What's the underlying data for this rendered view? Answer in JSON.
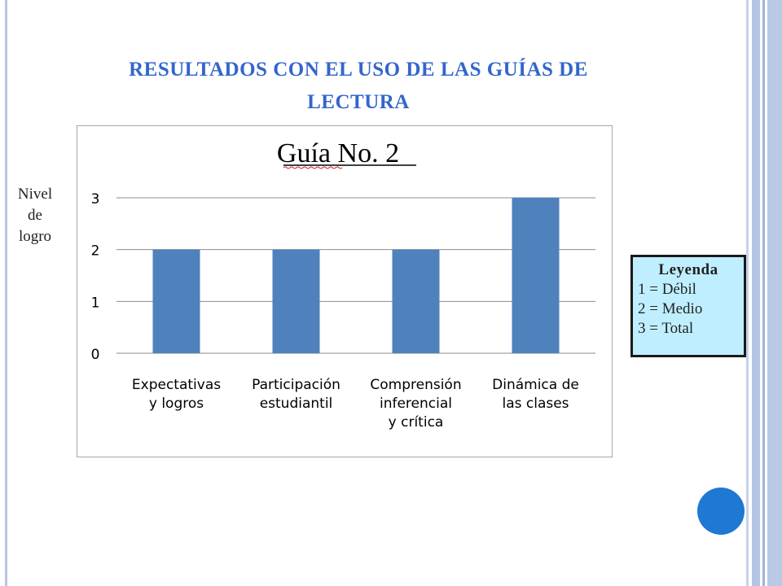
{
  "slide": {
    "title": "RESULTADOS CON EL USO DE LAS GUÍAS DE\nLECTURA",
    "ylabel_lines": [
      "Nivel",
      "de",
      "logro"
    ],
    "legend": {
      "title": "Leyenda",
      "items": [
        "1 = Débil",
        "2 = Medio",
        "3 = Total"
      ]
    }
  },
  "colors": {
    "bar": "#4f81bd",
    "title": "#3366cc",
    "legend_bg": "#bfefff"
  },
  "chart_data": {
    "type": "bar",
    "title": "Guía No. 2",
    "categories": [
      [
        "Expectativas",
        "y logros"
      ],
      [
        "Participación",
        "estudiantil"
      ],
      [
        "Comprensión",
        "inferencial",
        "y crítica"
      ],
      [
        "Dinámica de",
        "las clases"
      ]
    ],
    "values": [
      2,
      2,
      2,
      3
    ],
    "yticks": [
      "0",
      "1",
      "2",
      "3"
    ],
    "ylim": [
      0,
      3
    ],
    "grid": true,
    "legend": "none"
  }
}
